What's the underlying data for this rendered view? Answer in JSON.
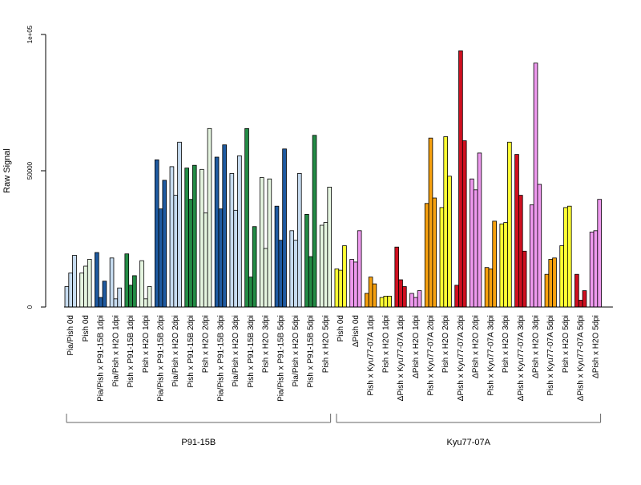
{
  "chart_data": {
    "type": "bar",
    "ylabel": "Raw Signal",
    "ylim": [
      0,
      100000
    ],
    "yticks": [
      {
        "value": 0,
        "label": "0"
      },
      {
        "value": 50000,
        "label": "50000"
      },
      {
        "value": 100000,
        "label": "1e+05"
      }
    ],
    "categories": [
      "Pia/Pish 0d",
      "Pish 0d",
      "Pia/Pish x P91-15B 1dpi",
      "Pia/Pish x H2O 1dpi",
      "Pish x P91-15B 1dpi",
      "Pish x H2O 1dpi",
      "Pia/Pish x P91-15B 2dpi",
      "Pia/Pish x H2O 2dpi",
      "Pish x P91-15B 2dpi",
      "Pish x H2O 2dpi",
      "Pia/Pish x P91-15B 3dpi",
      "Pia/Pish x H2O 3dpi",
      "Pish x P91-15B 3dpi",
      "Pish x H2O 3dpi",
      "Pia/Pish x P91-15B 5dpi",
      "Pia/Pish x H2O 5dpi",
      "Pish x P91-15B 5dpi",
      "Pish x H2O 5dpi",
      "Pish 0d",
      "ΔPish 0d",
      "Pish x Kyu77-07A 1dpi",
      "Pish x H2O 1dpi",
      "ΔPish x Kyu77-07A 1dpi",
      "ΔPish x H2O 1dpi",
      "Pish x Kyu77-07A 2dpi",
      "Pish x H2O 2dpi",
      "ΔPish x Kyu77-07A 2dpi",
      "ΔPish x H2O 2dpi",
      "Pish x Kyu77-07A 3dpi",
      "Pish x H2O 3dpi",
      "ΔPish x Kyu77-07A 3dpi",
      "ΔPish x H2O 3dpi",
      "Pish x Kyu77-07A 5dpi",
      "Pish x H2O 5dpi",
      "ΔPish x Kyu77-07A 5dpi",
      "ΔPish x H2O 5dpi"
    ],
    "bar_colors": [
      "#c6dbef",
      "#e5f5e0",
      "#1f5aa0",
      "#c6dbef",
      "#238b45",
      "#e5f5e0",
      "#1f5aa0",
      "#c6dbef",
      "#238b45",
      "#e5f5e0",
      "#1f5aa0",
      "#c6dbef",
      "#238b45",
      "#e5f5e0",
      "#1f5aa0",
      "#c6dbef",
      "#238b45",
      "#e5f5e0",
      "#ffff33",
      "#ee99ee",
      "#f5a00f",
      "#ffff33",
      "#d01020",
      "#ee99ee",
      "#f5a00f",
      "#ffff33",
      "#d01020",
      "#ee99ee",
      "#f5a00f",
      "#ffff33",
      "#d01020",
      "#ee99ee",
      "#f5a00f",
      "#ffff33",
      "#d01020",
      "#ee99ee"
    ],
    "values": [
      [
        7500,
        12500,
        19000
      ],
      [
        12500,
        15000,
        17500
      ],
      [
        20000,
        3500,
        9500
      ],
      [
        18000,
        3000,
        7000
      ],
      [
        19500,
        8000,
        11500
      ],
      [
        17000,
        3000,
        7500
      ],
      [
        54000,
        36000,
        46500
      ],
      [
        51500,
        41000,
        60500
      ],
      [
        51000,
        39500,
        52000
      ],
      [
        50500,
        34500,
        65500
      ],
      [
        55000,
        36000,
        59500
      ],
      [
        49000,
        35500,
        55500
      ],
      [
        65500,
        11000,
        29500
      ],
      [
        47500,
        21500,
        47000
      ],
      [
        37000,
        24500,
        58000
      ],
      [
        28000,
        24500,
        49000
      ],
      [
        34000,
        18500,
        63000
      ],
      [
        30000,
        31000,
        44000
      ],
      [
        14000,
        13500,
        22500
      ],
      [
        17500,
        16500,
        28000
      ],
      [
        5000,
        11000,
        8500
      ],
      [
        3500,
        4000,
        4000
      ],
      [
        22000,
        10000,
        7500
      ],
      [
        5000,
        3500,
        6000
      ],
      [
        38000,
        62000,
        40000
      ],
      [
        36500,
        62500,
        48000
      ],
      [
        8000,
        94000,
        61000
      ],
      [
        47000,
        43000,
        56500
      ],
      [
        14500,
        14000,
        31500
      ],
      [
        30500,
        31000,
        60500
      ],
      [
        56000,
        41000,
        20500
      ],
      [
        37500,
        89500,
        45000
      ],
      [
        12000,
        17500,
        18000
      ],
      [
        22500,
        36500,
        37000
      ],
      [
        12000,
        2500,
        6000
      ],
      [
        27500,
        28000,
        39500
      ]
    ],
    "groups": [
      {
        "label": "P91-15B",
        "from": 0,
        "to": 17
      },
      {
        "label": "Kyu77-07A",
        "from": 18,
        "to": 35
      }
    ]
  }
}
